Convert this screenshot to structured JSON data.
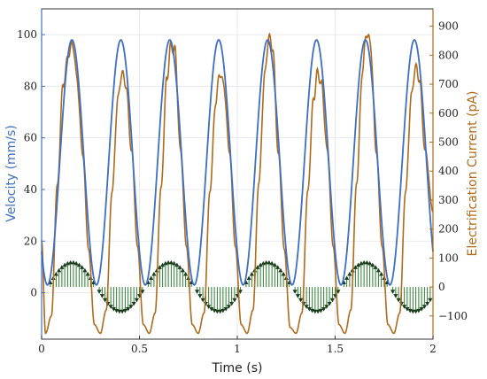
{
  "chart_data": {
    "type": "line",
    "xlabel": "Time (s)",
    "ylabel_left": "Velocity (mm/s)",
    "ylabel_right": "Electrification Current (pA)",
    "xlim": [
      0,
      2
    ],
    "ylim_left": [
      -18,
      110
    ],
    "ylim_right": [
      -180,
      960
    ],
    "x_ticks": [
      0,
      0.5,
      1,
      1.5,
      2
    ],
    "x_tick_labels": [
      "0",
      "0.5",
      "1",
      "1.5",
      "2"
    ],
    "y_left_ticks": [
      0,
      20,
      40,
      60,
      80,
      100
    ],
    "y_left_tick_labels": [
      "0",
      "20",
      "40",
      "60",
      "80",
      "100"
    ],
    "y_right_ticks": [
      -100,
      0,
      100,
      200,
      300,
      400,
      500,
      600,
      700,
      800,
      900
    ],
    "y_right_tick_labels": [
      "−100",
      "0",
      "100",
      "200",
      "300",
      "400",
      "500",
      "600",
      "700",
      "800",
      "900"
    ],
    "grid": true,
    "colors": {
      "velocity": "#3e6fc2",
      "current": "#b06a1a",
      "stems": "#2e7d32",
      "axis_left": "#3e6fc2",
      "axis_right": "#b06a1a"
    },
    "velocity_peaks_x": [
      0.155,
      0.405,
      0.655,
      0.905,
      1.155,
      1.405,
      1.655,
      1.905
    ],
    "velocity_troughs_x": [
      0.03,
      0.28,
      0.53,
      0.78,
      1.03,
      1.28,
      1.53,
      1.78
    ],
    "velocity_peak_value": 98,
    "velocity_trough_value": 3,
    "series": [
      {
        "axis": "left",
        "x": [
          0.0,
          0.03,
          0.06,
          0.09,
          0.12,
          0.155,
          0.19,
          0.22,
          0.25,
          0.28,
          0.31,
          0.34,
          0.37,
          0.405,
          0.44,
          0.47,
          0.5,
          0.53,
          0.56,
          0.59,
          0.62,
          0.655,
          0.69,
          0.72,
          0.75,
          0.78,
          0.81,
          0.84,
          0.87,
          0.905,
          0.94,
          0.97,
          1.0,
          1.03,
          1.06,
          1.09,
          1.12,
          1.155,
          1.19,
          1.22,
          1.25,
          1.28,
          1.31,
          1.34,
          1.37,
          1.405,
          1.44,
          1.47,
          1.5,
          1.53,
          1.56,
          1.59,
          1.62,
          1.655,
          1.69,
          1.72,
          1.75,
          1.78,
          1.81,
          1.84,
          1.87,
          1.905,
          1.94,
          1.97,
          2.0
        ],
        "values": [
          53,
          3,
          30,
          72,
          94,
          98,
          90,
          62,
          22,
          3,
          30,
          72,
          94,
          98,
          90,
          62,
          22,
          3,
          30,
          72,
          94,
          98,
          90,
          62,
          22,
          3,
          30,
          72,
          94,
          98,
          90,
          62,
          22,
          3,
          30,
          72,
          94,
          98,
          90,
          62,
          22,
          3,
          30,
          72,
          94,
          98,
          90,
          62,
          22,
          3,
          30,
          72,
          94,
          98,
          90,
          62,
          22,
          3,
          30,
          72,
          94,
          98,
          90,
          62,
          40
        ]
      },
      {
        "axis": "right",
        "x": [
          0.0,
          0.02,
          0.05,
          0.08,
          0.11,
          0.14,
          0.16,
          0.18,
          0.21,
          0.24,
          0.27,
          0.3,
          0.33,
          0.36,
          0.39,
          0.41,
          0.43,
          0.46,
          0.49,
          0.52,
          0.55,
          0.58,
          0.61,
          0.64,
          0.66,
          0.68,
          0.71,
          0.74,
          0.77,
          0.8,
          0.83,
          0.86,
          0.89,
          0.91,
          0.93,
          0.96,
          0.99,
          1.02,
          1.05,
          1.08,
          1.11,
          1.14,
          1.16,
          1.18,
          1.21,
          1.24,
          1.27,
          1.3,
          1.33,
          1.36,
          1.39,
          1.41,
          1.43,
          1.46,
          1.49,
          1.52,
          1.55,
          1.58,
          1.61,
          1.64,
          1.66,
          1.68,
          1.71,
          1.74,
          1.77,
          1.8,
          1.83,
          1.86,
          1.89,
          1.91,
          1.93,
          1.96,
          2.0
        ],
        "values": [
          160,
          -160,
          -100,
          350,
          700,
          810,
          840,
          720,
          460,
          130,
          -130,
          -160,
          -80,
          330,
          650,
          740,
          700,
          470,
          140,
          -130,
          -160,
          -90,
          340,
          720,
          830,
          820,
          470,
          140,
          -130,
          -160,
          -90,
          330,
          640,
          740,
          700,
          470,
          140,
          -130,
          -160,
          -80,
          360,
          730,
          860,
          830,
          460,
          130,
          -140,
          -160,
          -90,
          330,
          650,
          740,
          700,
          470,
          140,
          -130,
          -160,
          -80,
          360,
          750,
          880,
          840,
          470,
          140,
          -130,
          -160,
          -90,
          330,
          660,
          760,
          720,
          470,
          260
        ]
      }
    ]
  }
}
